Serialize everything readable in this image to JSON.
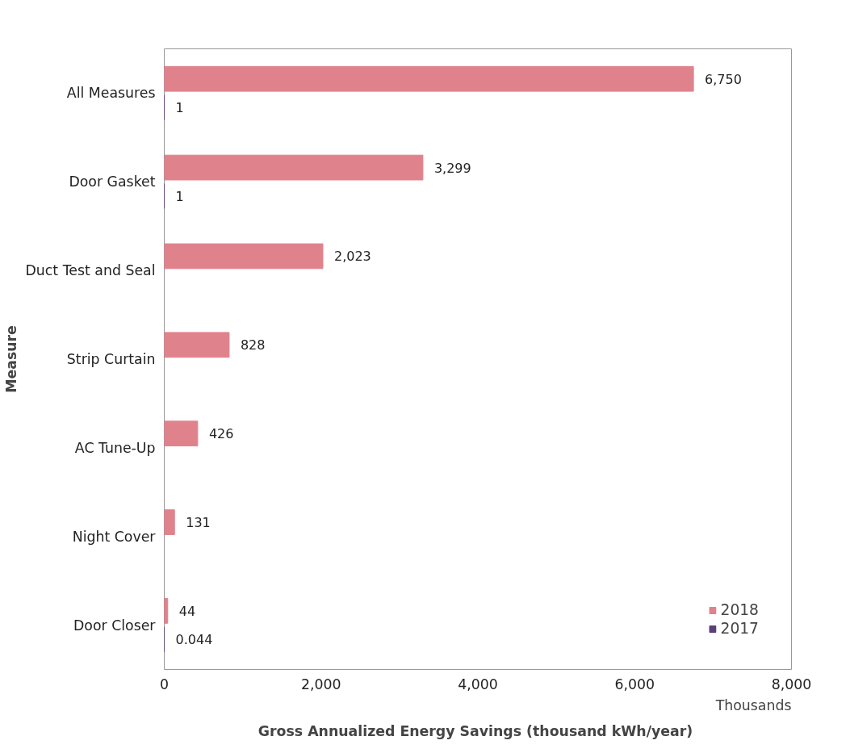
{
  "chart_data": {
    "type": "bar",
    "orientation": "horizontal",
    "xlabel": "Gross Annualized  Energy Savings (thousand kWh/year)",
    "ylabel": "Measure",
    "categories": [
      "All Measures",
      "Door Gasket",
      "Duct Test and Seal",
      "Strip Curtain",
      "AC Tune-Up",
      "Night Cover",
      "Door Closer"
    ],
    "series": [
      {
        "name": "2018",
        "color": "#e0828c",
        "values": [
          6750,
          3299,
          2023,
          828,
          426,
          131,
          44
        ],
        "value_labels": [
          "6,750",
          "3,299",
          "2,023",
          "828",
          "426",
          "131",
          "44"
        ]
      },
      {
        "name": "2017",
        "color": "#5b3f7a",
        "values": [
          1,
          1,
          null,
          null,
          null,
          null,
          0.044
        ],
        "value_labels": [
          "1",
          "1",
          null,
          null,
          null,
          null,
          "0.044"
        ]
      }
    ],
    "xlim": [
      0,
      8000
    ],
    "xticks": [
      0,
      {
        "value": 2000,
        "label": "2,000"
      },
      {
        "value": 4000,
        "label": "4,000"
      },
      {
        "value": 6000,
        "label": "6,000"
      },
      {
        "value": 8000,
        "label": "8,000"
      }
    ],
    "grid": false,
    "legend": "bottom right",
    "annotations": [
      "Thousands"
    ]
  }
}
